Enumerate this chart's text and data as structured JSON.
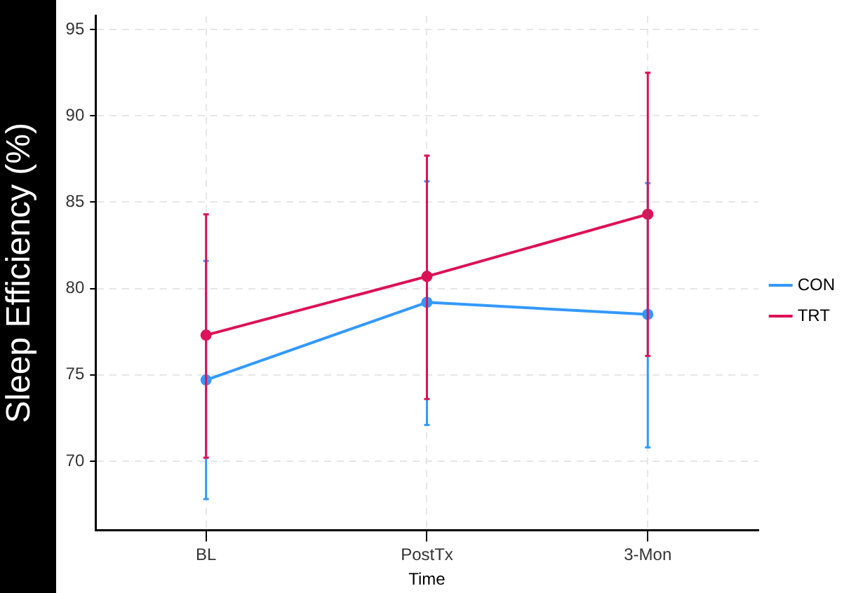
{
  "chart_data": {
    "type": "line",
    "xlabel": "Time",
    "ylabel": "Sleep Efficiency (%)",
    "categories": [
      "BL",
      "PostTx",
      "3-Mon"
    ],
    "series": [
      {
        "name": "CON",
        "color": "#3399ff",
        "values": [
          74.7,
          79.2,
          78.5
        ],
        "errors": [
          [
            67.8,
            81.6
          ],
          [
            72.1,
            86.2
          ],
          [
            70.8,
            86.1
          ]
        ]
      },
      {
        "name": "TRT",
        "color": "#dd1155",
        "values": [
          77.3,
          80.7,
          84.3
        ],
        "errors": [
          [
            70.2,
            84.3
          ],
          [
            73.6,
            87.7
          ],
          [
            76.1,
            92.5
          ]
        ]
      }
    ],
    "ylim": [
      66,
      95.8
    ],
    "yticks": [
      70,
      75,
      80,
      85,
      90,
      95
    ],
    "grid": true,
    "legend": "right",
    "marker": "circle",
    "line_style": "solid"
  }
}
